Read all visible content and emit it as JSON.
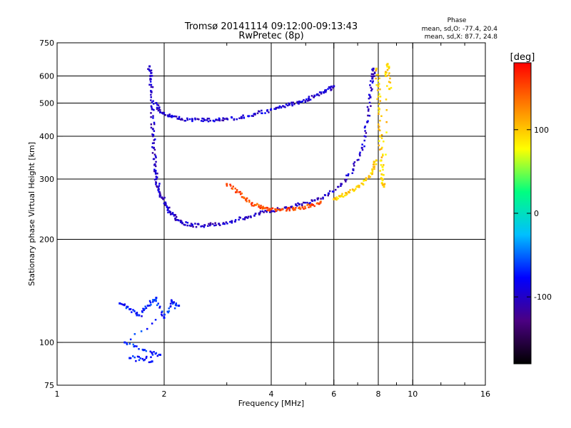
{
  "chart_data": {
    "type": "scatter",
    "title": "Tromsø 20141114 09:12:00-09:13:43",
    "subtitle": "RwPretec (8p)",
    "xlabel": "Frequency [MHz]",
    "ylabel": "Stationary phase Virtual Height [km]",
    "x_scale": "log",
    "y_scale": "log",
    "xlim": [
      1,
      16
    ],
    "ylim": [
      75,
      750
    ],
    "x_ticks": [
      "1",
      "2",
      "4",
      "6",
      "8",
      "10",
      "16"
    ],
    "x_tick_values": [
      1,
      2,
      4,
      6,
      8,
      10,
      16
    ],
    "y_ticks": [
      "750",
      "600",
      "500",
      "400",
      "300",
      "200",
      "100",
      "75"
    ],
    "y_tick_values": [
      750,
      600,
      500,
      400,
      300,
      200,
      100,
      75
    ],
    "grid": true,
    "stats": {
      "heading": "Phase",
      "line_o": "mean, sd,O: -77.4, 20.4",
      "line_x": "mean, sd,X:  87.7, 24.8"
    },
    "colorbar": {
      "label": "[deg]",
      "range": [
        -180,
        180
      ],
      "ticks": [
        "100",
        "0",
        "-100"
      ],
      "tick_values": [
        100,
        0,
        -100
      ],
      "colors": [
        "#000000",
        "#4b0082",
        "#0000ff",
        "#00bfff",
        "#00ff80",
        "#ffff00",
        "#ff8000",
        "#ff0000"
      ]
    },
    "series": [
      {
        "x": [
          1.82,
          1.83,
          1.84,
          1.85,
          1.86,
          1.87,
          1.88,
          1.9,
          1.93,
          1.97,
          2.02,
          2.08,
          2.15,
          2.25,
          2.4,
          2.6,
          2.85,
          3.1,
          3.4,
          3.7,
          4.0,
          4.4,
          4.8,
          5.3,
          5.8,
          6.3,
          6.8,
          7.2,
          7.45,
          7.6,
          7.7,
          7.75
        ],
        "y": [
          640,
          600,
          540,
          480,
          420,
          370,
          330,
          300,
          280,
          265,
          252,
          240,
          230,
          223,
          220,
          220,
          222,
          226,
          232,
          238,
          243,
          248,
          253,
          260,
          272,
          290,
          320,
          370,
          440,
          520,
          590,
          630
        ],
        "phase": -100
      },
      {
        "x": [
          1.9,
          1.95,
          2.05,
          2.2,
          2.4,
          2.6,
          2.8,
          3.0,
          3.3,
          3.6,
          3.9,
          4.2,
          4.5,
          4.8,
          5.1,
          5.4,
          5.7,
          6.0
        ],
        "y": [
          500,
          470,
          460,
          450,
          448,
          446,
          447,
          450,
          455,
          465,
          475,
          485,
          495,
          505,
          515,
          530,
          545,
          560
        ],
        "phase": -95
      },
      {
        "x": [
          7.9,
          8.0,
          8.05,
          8.1,
          8.15,
          8.2,
          8.3,
          8.4,
          8.5,
          8.6
        ],
        "y": [
          630,
          560,
          480,
          400,
          340,
          300,
          285,
          600,
          650,
          550
        ],
        "phase": 95
      },
      {
        "x": [
          6.0,
          6.3,
          6.6,
          7.0,
          7.4,
          7.7,
          7.9
        ],
        "y": [
          262,
          268,
          275,
          285,
          300,
          320,
          340
        ],
        "phase": 95
      },
      {
        "x": [
          3.0,
          3.2,
          3.4,
          3.6,
          3.8,
          4.0,
          4.3,
          4.6,
          4.9,
          5.2,
          5.5
        ],
        "y": [
          290,
          275,
          262,
          252,
          247,
          245,
          245,
          246,
          248,
          252,
          256
        ],
        "phase": 150
      },
      {
        "x": [
          1.5,
          1.6,
          1.7,
          1.8,
          1.9,
          2.0,
          2.1,
          2.2,
          1.55,
          1.75,
          1.95,
          1.6,
          1.85
        ],
        "y": [
          130,
          125,
          120,
          128,
          135,
          118,
          132,
          128,
          100,
          95,
          92,
          90,
          88
        ],
        "phase": -70
      }
    ]
  }
}
